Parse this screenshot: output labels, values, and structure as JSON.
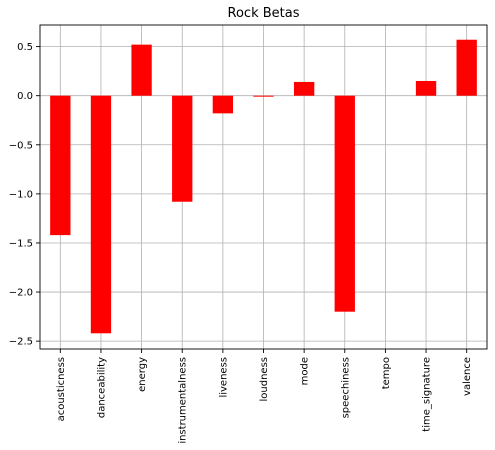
{
  "chart_data": {
    "type": "bar",
    "title": "Rock Betas",
    "xlabel": "",
    "ylabel": "",
    "categories": [
      "acousticness",
      "danceability",
      "energy",
      "instrumentalness",
      "liveness",
      "loudness",
      "mode",
      "speechiness",
      "tempo",
      "time_signature",
      "valence"
    ],
    "values": [
      -1.42,
      -2.42,
      0.52,
      -1.08,
      -0.18,
      -0.01,
      0.14,
      -2.2,
      0.0,
      0.15,
      0.57
    ],
    "ylim": [
      -2.58,
      0.72
    ],
    "yticks": [
      0.5,
      0.0,
      -0.5,
      -1.0,
      -1.5,
      -2.0,
      -2.5
    ],
    "ytick_labels": [
      "0.5",
      "0.0",
      "−0.5",
      "−1.0",
      "−1.5",
      "−2.0",
      "−2.5"
    ],
    "grid": true,
    "bar_color": "#ff0000"
  }
}
